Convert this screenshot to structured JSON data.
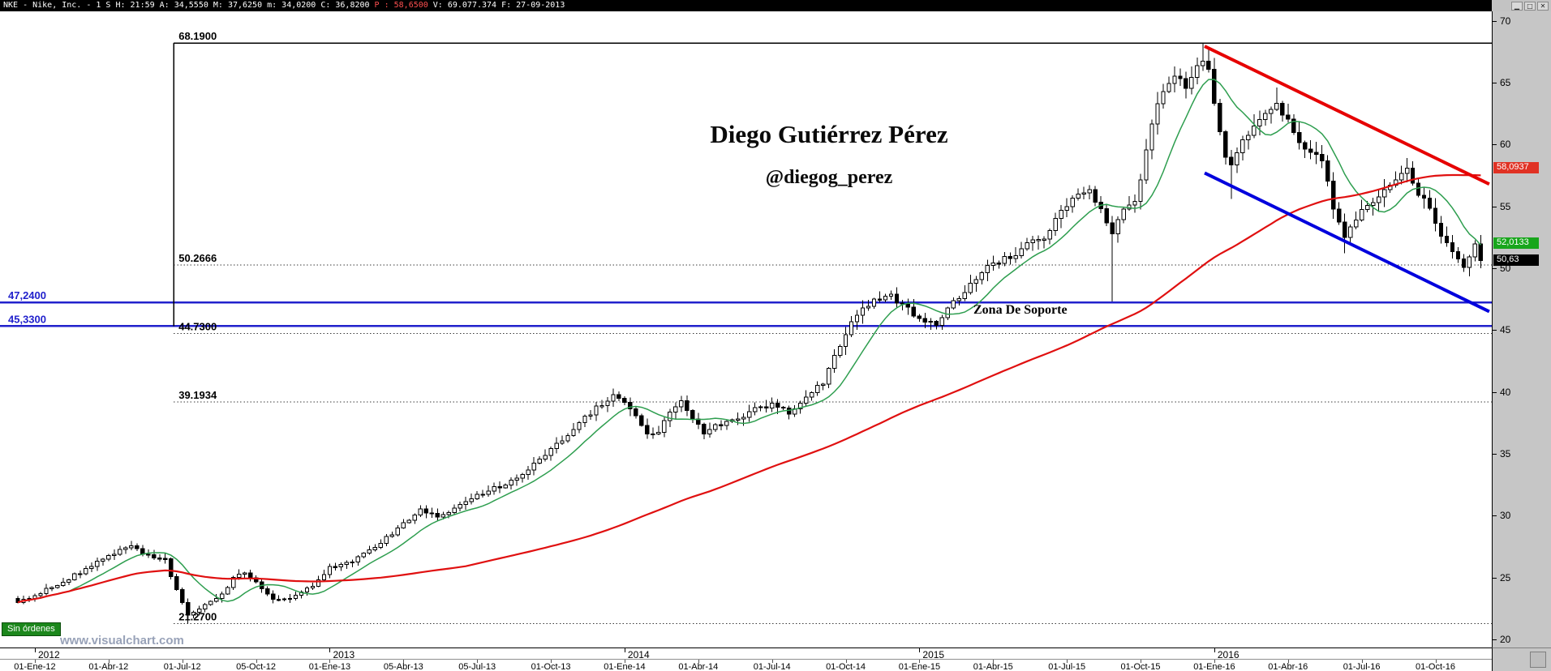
{
  "titlebar": {
    "info_left": "NKE - Nike, Inc. -  1 S H: 21:59 A: 34,5550 M: 37,6250 m: 34,0200 C: 36,8200",
    "info_price": "P : 58,6500",
    "info_right": "V: 69.077.374 F: 27-09-2013"
  },
  "window_buttons": {
    "minimize": "▁",
    "restore": "□",
    "close": "✕"
  },
  "watermark": {
    "title": "Diego Gutiérrez Pérez",
    "handle": "@diegog_perez",
    "site": "www.visualchart.com"
  },
  "status_badge": "Sin órdenes",
  "annotations": {
    "support_zone": "Zona De Soporte"
  },
  "price_tags": [
    {
      "name": "ma-slow",
      "label": "58,0937",
      "value": 58.0937,
      "bg": "#e03224",
      "fg": "#ffffff"
    },
    {
      "name": "ma-fast",
      "label": "52,0133",
      "value": 52.0133,
      "bg": "#18a61c",
      "fg": "#ffffff"
    },
    {
      "name": "last-price",
      "label": "50,63",
      "value": 50.63,
      "bg": "#000000",
      "fg": "#ffffff"
    }
  ],
  "chart_data": {
    "type": "candlestick",
    "symbol": "NKE - Nike, Inc.",
    "timeframe": "1 S",
    "y_axis": {
      "ticks": [
        70,
        65,
        60,
        55,
        50,
        45,
        40,
        35,
        30,
        25,
        20
      ],
      "range": [
        19.5,
        70.8
      ]
    },
    "x_axis": {
      "years": [
        "2012",
        "2013",
        "2014",
        "2015",
        "2016"
      ],
      "quarters": [
        "01-Ene-12",
        "01-Abr-12",
        "01-Jul-12",
        "05-Oct-12",
        "01-Ene-13",
        "05-Abr-13",
        "05-Jul-13",
        "01-Oct-13",
        "01-Ene-14",
        "01-Abr-14",
        "01-Jul-14",
        "01-Oct-14",
        "01-Ene-15",
        "01-Abr-15",
        "01-Jul-15",
        "01-Oct-15",
        "01-Ene-16",
        "01-Abr-16",
        "01-Jul-16",
        "01-Oct-16"
      ]
    },
    "price_extremes": {
      "high": 68.19,
      "low": 21.27
    },
    "fib_anchor_week": 27.5,
    "fib_vertical": {
      "from": 68.19,
      "to": 45.33
    },
    "levels": [
      {
        "label": "68.1900",
        "price": 68.19,
        "style": "solid",
        "color": "#000000",
        "label_color": "#000000",
        "width": 1.6,
        "full_width": false
      },
      {
        "label": "50.2666",
        "price": 50.2666,
        "style": "dotted",
        "color": "#3a3a3a",
        "label_color": "#000000",
        "width": 1,
        "full_width": false
      },
      {
        "label": "44.7300",
        "price": 44.73,
        "style": "dotted",
        "color": "#3a3a3a",
        "label_color": "#000000",
        "width": 1,
        "full_width": false
      },
      {
        "label": "39.1934",
        "price": 39.1934,
        "style": "dotted",
        "color": "#3a3a3a",
        "label_color": "#000000",
        "width": 1,
        "full_width": false
      },
      {
        "label": "21.2700",
        "price": 21.27,
        "style": "dotted",
        "color": "#3a3a3a",
        "label_color": "#000000",
        "width": 1,
        "full_width": false
      },
      {
        "label": "47,2400",
        "price": 47.24,
        "style": "solid",
        "color": "#2121cc",
        "label_color": "#2121cc",
        "width": 2.4,
        "full_width": true
      },
      {
        "label": "45,3300",
        "price": 45.33,
        "style": "solid",
        "color": "#2121cc",
        "label_color": "#2121cc",
        "width": 2.4,
        "full_width": true
      }
    ],
    "trendlines": [
      {
        "name": "upper-resistance",
        "color": "#e60000",
        "width": 4,
        "points": [
          [
            209.3,
            67.94
          ],
          [
            259.5,
            56.8
          ]
        ]
      },
      {
        "name": "lower-support",
        "color": "#0000dd",
        "width": 4,
        "points": [
          [
            209.3,
            57.7
          ],
          [
            259.5,
            46.5
          ]
        ]
      }
    ],
    "moving_averages": [
      {
        "name": "fast",
        "window": 10,
        "color": "#2e9e4f"
      },
      {
        "name": "slow",
        "window": 80,
        "color": "#e01010"
      }
    ],
    "weekly_close_anchors": [
      [
        0,
        23.0
      ],
      [
        3,
        23.6
      ],
      [
        8,
        24.6
      ],
      [
        13,
        26.0
      ],
      [
        16,
        26.8
      ],
      [
        20,
        27.5
      ],
      [
        22,
        27.0
      ],
      [
        26,
        26.4
      ],
      [
        28,
        24.0
      ],
      [
        30,
        21.9
      ],
      [
        33,
        22.8
      ],
      [
        36,
        23.6
      ],
      [
        38,
        25.0
      ],
      [
        40,
        25.5
      ],
      [
        42,
        24.6
      ],
      [
        45,
        23.2
      ],
      [
        48,
        23.4
      ],
      [
        52,
        24.4
      ],
      [
        55,
        25.8
      ],
      [
        59,
        26.4
      ],
      [
        62,
        27.2
      ],
      [
        65,
        28.2
      ],
      [
        68,
        29.4
      ],
      [
        71,
        30.4
      ],
      [
        74,
        30.0
      ],
      [
        78,
        30.8
      ],
      [
        81,
        31.6
      ],
      [
        85,
        32.4
      ],
      [
        89,
        33.4
      ],
      [
        92,
        34.6
      ],
      [
        94,
        35.4
      ],
      [
        98,
        37.0
      ],
      [
        102,
        38.8
      ],
      [
        105,
        39.7
      ],
      [
        107,
        39.2
      ],
      [
        109,
        38.2
      ],
      [
        111,
        36.6
      ],
      [
        113,
        36.9
      ],
      [
        115,
        38.4
      ],
      [
        117,
        39.2
      ],
      [
        119,
        38.0
      ],
      [
        121,
        36.8
      ],
      [
        124,
        37.4
      ],
      [
        127,
        37.8
      ],
      [
        130,
        38.6
      ],
      [
        133,
        38.9
      ],
      [
        136,
        38.4
      ],
      [
        139,
        39.4
      ],
      [
        142,
        40.8
      ],
      [
        144,
        42.8
      ],
      [
        146,
        44.8
      ],
      [
        148,
        46.2
      ],
      [
        151,
        47.4
      ],
      [
        154,
        47.8
      ],
      [
        157,
        46.6
      ],
      [
        159,
        46.0
      ],
      [
        162,
        45.6
      ],
      [
        165,
        47.2
      ],
      [
        168,
        48.8
      ],
      [
        170,
        49.8
      ],
      [
        172,
        50.2
      ],
      [
        175,
        51.0
      ],
      [
        178,
        51.8
      ],
      [
        181,
        52.6
      ],
      [
        183,
        53.8
      ],
      [
        185,
        55.0
      ],
      [
        187,
        55.8
      ],
      [
        189,
        56.2
      ],
      [
        191,
        54.6
      ],
      [
        193,
        52.8
      ],
      [
        195,
        54.8
      ],
      [
        197,
        55.6
      ],
      [
        198,
        57.0
      ],
      [
        200,
        62.0
      ],
      [
        202,
        64.2
      ],
      [
        204,
        65.4
      ],
      [
        206,
        64.8
      ],
      [
        208,
        66.2
      ],
      [
        209,
        67.0
      ],
      [
        210,
        65.8
      ],
      [
        211,
        63.4
      ],
      [
        212,
        61.0
      ],
      [
        213,
        59.2
      ],
      [
        214,
        58.4
      ],
      [
        216,
        60.2
      ],
      [
        218,
        61.6
      ],
      [
        220,
        62.2
      ],
      [
        222,
        63.2
      ],
      [
        224,
        61.8
      ],
      [
        226,
        60.2
      ],
      [
        228,
        59.4
      ],
      [
        230,
        58.6
      ],
      [
        232,
        55.0
      ],
      [
        234,
        52.4
      ],
      [
        236,
        54.0
      ],
      [
        238,
        55.0
      ],
      [
        240,
        55.8
      ],
      [
        242,
        56.6
      ],
      [
        244,
        57.4
      ],
      [
        245,
        58.0
      ],
      [
        247,
        56.2
      ],
      [
        249,
        54.6
      ],
      [
        251,
        52.6
      ],
      [
        253,
        51.2
      ],
      [
        255,
        50.2
      ],
      [
        256,
        51.0
      ],
      [
        257,
        51.8
      ],
      [
        258,
        50.63
      ]
    ],
    "wick_overrides": {
      "30": {
        "low": 21.27
      },
      "193": {
        "low": 47.3
      },
      "209": {
        "high": 68.19
      },
      "214": {
        "low": 55.6
      },
      "222": {
        "high": 64.6
      },
      "234": {
        "low": 51.2
      },
      "245": {
        "high": 58.9
      },
      "255": {
        "low": 49.7
      }
    },
    "last_close": 50.63
  }
}
